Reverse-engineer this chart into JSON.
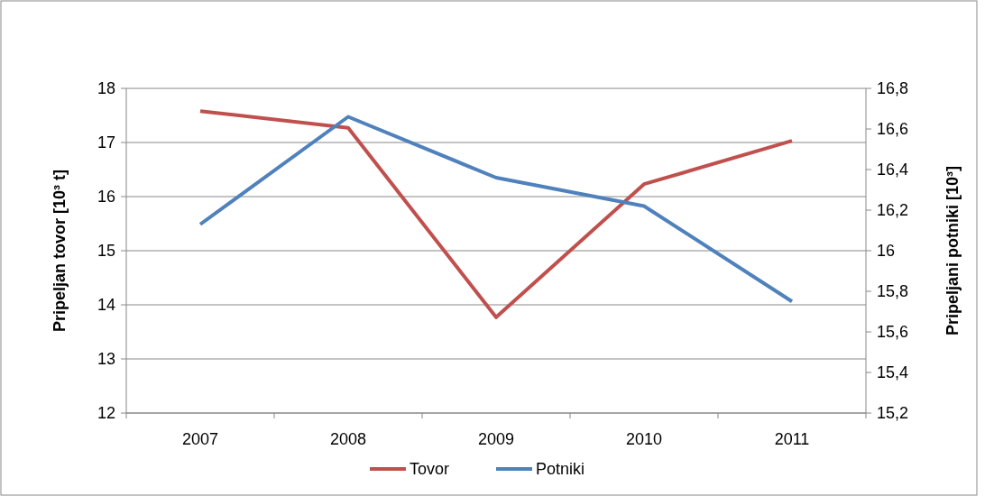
{
  "chart_data": {
    "type": "line",
    "categories": [
      "2007",
      "2008",
      "2009",
      "2010",
      "2011"
    ],
    "ylabel": "Pripeljan tovor [10³ t]",
    "y2label": "Pripeljani potniki [10³]",
    "ylim": [
      12,
      18
    ],
    "yticks": [
      12,
      13,
      14,
      15,
      16,
      17,
      18
    ],
    "y2lim": [
      15.2,
      16.8
    ],
    "y2ticks": [
      {
        "value": 15.2,
        "label": "15,2"
      },
      {
        "value": 15.4,
        "label": "15,4"
      },
      {
        "value": 15.6,
        "label": "15,6"
      },
      {
        "value": 15.8,
        "label": "15,8"
      },
      {
        "value": 16,
        "label": "16"
      },
      {
        "value": 16.2,
        "label": "16,2"
      },
      {
        "value": 16.4,
        "label": "16,4"
      },
      {
        "value": 16.6,
        "label": "16,6"
      },
      {
        "value": 16.8,
        "label": "16,8"
      }
    ],
    "series": [
      {
        "name": "Tovor",
        "color": "#c0504d",
        "values": [
          17.58,
          17.27,
          13.77,
          16.23,
          17.03
        ]
      },
      {
        "name": "Potniki",
        "color": "#4f81bd",
        "axis": "y2",
        "values": [
          16.13,
          16.66,
          16.36,
          16.22,
          15.75
        ]
      }
    ],
    "grid": "y",
    "legend": "bottom",
    "marker": "none",
    "line_style": "solid"
  }
}
